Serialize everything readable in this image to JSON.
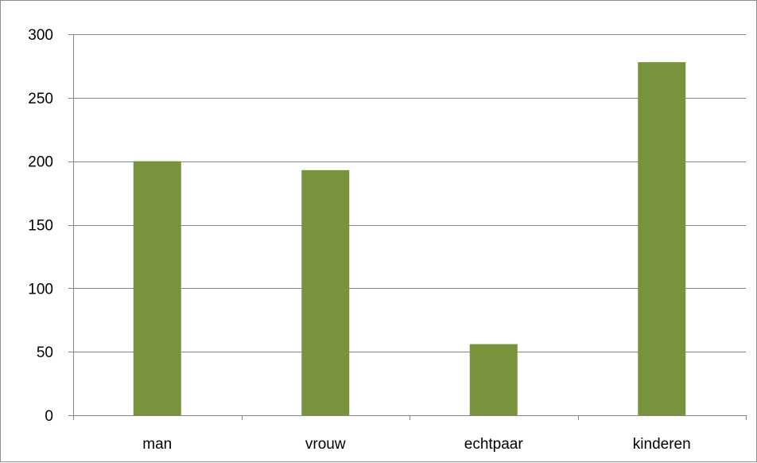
{
  "colors": {
    "bar": "#77933c",
    "gridline": "#868686",
    "axis": "#868686",
    "border": "#8c8c8c",
    "text": "#000000"
  },
  "chart_data": {
    "type": "bar",
    "categories": [
      "man",
      "vrouw",
      "echtpaar",
      "kinderen"
    ],
    "values": [
      200,
      193,
      56,
      278
    ],
    "title": "",
    "xlabel": "",
    "ylabel": "",
    "ylim": [
      0,
      300
    ],
    "yticks": [
      0,
      50,
      100,
      150,
      200,
      250,
      300
    ],
    "grid": "horizontal",
    "legend": "none"
  }
}
